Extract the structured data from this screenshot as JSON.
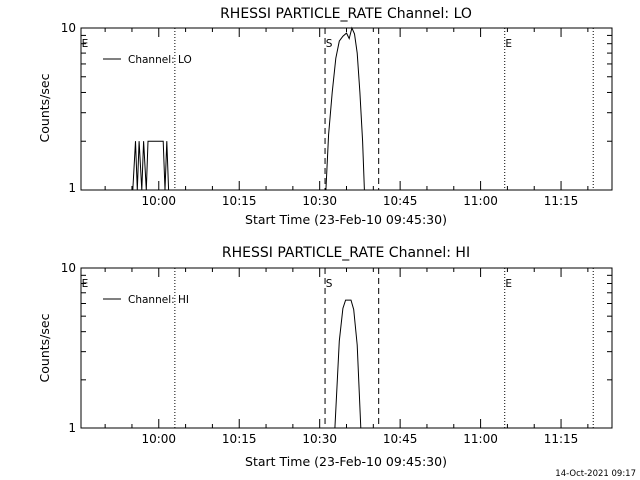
{
  "footer_timestamp": "14-Oct-2021 09:17",
  "chart_data": [
    {
      "type": "line",
      "title": "RHESSI PARTICLE_RATE Channel: LO",
      "xlabel": "Start Time (23-Feb-10 09:45:30)",
      "ylabel": "Counts/sec",
      "yscale": "log",
      "ylim": [
        1,
        10
      ],
      "xlim": [
        "09:45:30",
        "11:24:30"
      ],
      "x_ticks": [
        "10:00",
        "10:15",
        "10:30",
        "10:45",
        "11:00",
        "11:15"
      ],
      "y_ticks": [
        "1",
        "10"
      ],
      "grid": false,
      "legend": {
        "position": "top-left",
        "entries": [
          "Channel: LO"
        ]
      },
      "markers": [
        {
          "label": "E",
          "time": "09:45:30",
          "style": "dotted"
        },
        {
          "label": "",
          "time": "10:03:00",
          "style": "dotted"
        },
        {
          "label": "S",
          "time": "10:31:00",
          "style": "dashed"
        },
        {
          "label": "",
          "time": "10:41:00",
          "style": "dashed"
        },
        {
          "label": "E",
          "time": "11:04:30",
          "style": "dotted"
        },
        {
          "label": "",
          "time": "11:21:00",
          "style": "dotted"
        }
      ],
      "series": [
        {
          "x": [
            "09:55:10",
            "09:55:40",
            "09:56:00",
            "09:56:20",
            "09:56:50",
            "09:57:10",
            "09:57:40",
            "09:58:00",
            "09:58:20",
            "09:58:50",
            "09:59:20",
            "09:59:50",
            "10:00:20",
            "10:00:50",
            "10:01:10",
            "10:01:30",
            "10:01:50",
            "10:02:10",
            "10:31:10",
            "10:31:40",
            "10:32:20",
            "10:33:00",
            "10:33:40",
            "10:34:20",
            "10:35:00",
            "10:35:30",
            "10:36:00",
            "10:36:30",
            "10:37:00",
            "10:37:30",
            "10:38:00",
            "10:38:20"
          ],
          "y": [
            1,
            2,
            1,
            2,
            1,
            2,
            1,
            2,
            2,
            2,
            2,
            2,
            2,
            2,
            1,
            2,
            1,
            1,
            1,
            2.2,
            4,
            6.5,
            8.3,
            8.9,
            9.3,
            8.6,
            10,
            9.2,
            7,
            4,
            2,
            1
          ]
        }
      ]
    },
    {
      "type": "line",
      "title": "RHESSI PARTICLE_RATE Channel: HI",
      "xlabel": "Start Time (23-Feb-10 09:45:30)",
      "ylabel": "Counts/sec",
      "yscale": "log",
      "ylim": [
        1,
        10
      ],
      "xlim": [
        "09:45:30",
        "11:24:30"
      ],
      "x_ticks": [
        "10:00",
        "10:15",
        "10:30",
        "10:45",
        "11:00",
        "11:15"
      ],
      "y_ticks": [
        "1",
        "10"
      ],
      "grid": false,
      "legend": {
        "position": "top-left",
        "entries": [
          "Channel: HI"
        ]
      },
      "markers": [
        {
          "label": "E",
          "time": "09:45:30",
          "style": "dotted"
        },
        {
          "label": "",
          "time": "10:03:00",
          "style": "dotted"
        },
        {
          "label": "S",
          "time": "10:31:00",
          "style": "dashed"
        },
        {
          "label": "",
          "time": "10:41:00",
          "style": "dashed"
        },
        {
          "label": "E",
          "time": "11:04:30",
          "style": "dotted"
        },
        {
          "label": "",
          "time": "11:21:00",
          "style": "dotted"
        }
      ],
      "series": [
        {
          "x": [
            "10:32:50",
            "10:33:40",
            "10:34:20",
            "10:34:50",
            "10:35:20",
            "10:35:50",
            "10:36:20",
            "10:37:00",
            "10:37:40"
          ],
          "y": [
            1,
            3.5,
            5.6,
            6.3,
            6.3,
            6.3,
            5.5,
            3.3,
            1
          ]
        }
      ]
    }
  ]
}
